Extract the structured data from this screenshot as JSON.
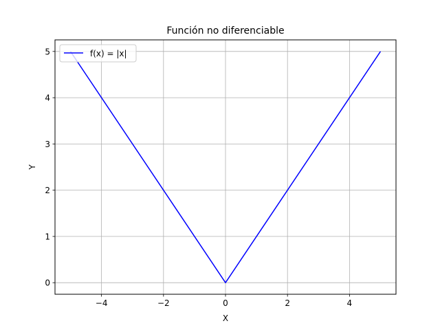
{
  "chart_data": {
    "type": "line",
    "title": "Función no diferenciable",
    "xlabel": "X",
    "ylabel": "Y",
    "xlim": [
      -5.5,
      5.5
    ],
    "ylim": [
      -0.25,
      5.25
    ],
    "xticks": [
      -4,
      -2,
      0,
      2,
      4
    ],
    "xtick_labels": [
      "−4",
      "−2",
      "0",
      "2",
      "4"
    ],
    "yticks": [
      0,
      1,
      2,
      3,
      4,
      5
    ],
    "ytick_labels": [
      "0",
      "1",
      "2",
      "3",
      "4",
      "5"
    ],
    "grid": true,
    "legend_position": "upper-left",
    "series": [
      {
        "name": "f(x) = |x|",
        "color": "#0000ff",
        "x": [
          -5,
          0,
          5
        ],
        "y": [
          5,
          0,
          5
        ]
      }
    ]
  }
}
